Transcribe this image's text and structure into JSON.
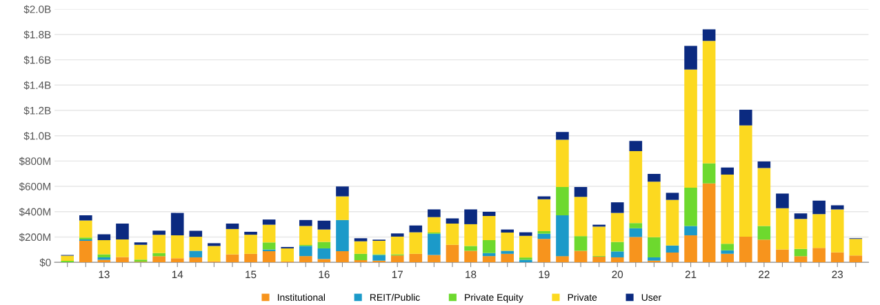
{
  "chart_data": {
    "type": "bar",
    "stacked": true,
    "categories": [
      null,
      null,
      "13",
      null,
      null,
      null,
      "14",
      null,
      null,
      null,
      "15",
      null,
      null,
      null,
      "16",
      null,
      null,
      null,
      "17",
      null,
      null,
      null,
      "18",
      null,
      null,
      null,
      "19",
      null,
      null,
      null,
      "20",
      null,
      null,
      null,
      "21",
      null,
      null,
      null,
      "22",
      null,
      null,
      null,
      "23",
      null
    ],
    "series": [
      {
        "name": "Institutional",
        "color": "#f7941d",
        "values": [
          0,
          170000000.0,
          20000000.0,
          41000000.0,
          5000000.0,
          49000000.0,
          32000000.0,
          39000000.0,
          8000000.0,
          63000000.0,
          67000000.0,
          88000000.0,
          7000000.0,
          49000000.0,
          26000000.0,
          88000000.0,
          17000000.0,
          13000000.0,
          54000000.0,
          67000000.0,
          58000000.0,
          138000000.0,
          91000000.0,
          49000000.0,
          67000000.0,
          0,
          185000000.0,
          49000000.0,
          91000000.0,
          45000000.0,
          39000000.0,
          200000000.0,
          13000000.0,
          77000000.0,
          213000000.0,
          623000000.0,
          67000000.0,
          203000000.0,
          179000000.0,
          101000000.0,
          49000000.0,
          114000000.0,
          78000000.0,
          54000000.0
        ]
      },
      {
        "name": "REIT/Public",
        "color": "#1b9ac9",
        "values": [
          0,
          10000000.0,
          19000000.0,
          0,
          0,
          0,
          0,
          52000000.0,
          0,
          0,
          0,
          13000000.0,
          0,
          80000000.0,
          84000000.0,
          246000000.0,
          0,
          45000000.0,
          0,
          0,
          168000000.0,
          0,
          0,
          24000000.0,
          24000000.0,
          20000000.0,
          41000000.0,
          322000000.0,
          0,
          0,
          47000000.0,
          69000000.0,
          26000000.0,
          56000000.0,
          74000000.0,
          0,
          28000000.0,
          0,
          0,
          0,
          0,
          0,
          0,
          0
        ]
      },
      {
        "name": "Private Equity",
        "color": "#6dd92e",
        "values": [
          12000000.0,
          15000000.0,
          24000000.0,
          0,
          16000000.0,
          24000000.0,
          0,
          null,
          0,
          0,
          0,
          56000000.0,
          0,
          8000000.0,
          51000000.0,
          0,
          50000000.0,
          6000000.0,
          9000000.0,
          0,
          9000000.0,
          0,
          38000000.0,
          102000000.0,
          0,
          18000000.0,
          20000000.0,
          224000000.0,
          116000000.0,
          5000000.0,
          75000000.0,
          41000000.0,
          159000000.0,
          0,
          303000000.0,
          159000000.0,
          52000000.0,
          0,
          108000000.0,
          0,
          56000000.0,
          0,
          0,
          0
        ]
      },
      {
        "name": "Private",
        "color": "#fcd920",
        "values": [
          40000000.0,
          135000000.0,
          112000000.0,
          140000000.0,
          117000000.0,
          144000000.0,
          181000000.0,
          111000000.0,
          121000000.0,
          200000000.0,
          151000000.0,
          140000000.0,
          103000000.0,
          150000000.0,
          98000000.0,
          187000000.0,
          99000000.0,
          106000000.0,
          140000000.0,
          170000000.0,
          122000000.0,
          168000000.0,
          172000000.0,
          191000000.0,
          144000000.0,
          171000000.0,
          252000000.0,
          374000000.0,
          310000000.0,
          232000000.0,
          229000000.0,
          569000000.0,
          439000000.0,
          360000000.0,
          933000000.0,
          967000000.0,
          546000000.0,
          878000000.0,
          458000000.0,
          326000000.0,
          238000000.0,
          267000000.0,
          340000000.0,
          131000000.0
        ]
      },
      {
        "name": "User",
        "color": "#0b2a80",
        "values": [
          6000000.0,
          41000000.0,
          47000000.0,
          125000000.0,
          19000000.0,
          33000000.0,
          177000000.0,
          47000000.0,
          22000000.0,
          43000000.0,
          23000000.0,
          41000000.0,
          11000000.0,
          47000000.0,
          70000000.0,
          78000000.0,
          24000000.0,
          9000000.0,
          25000000.0,
          54000000.0,
          61000000.0,
          41000000.0,
          117000000.0,
          33000000.0,
          24000000.0,
          28000000.0,
          23000000.0,
          60000000.0,
          78000000.0,
          15000000.0,
          84000000.0,
          80000000.0,
          61000000.0,
          56000000.0,
          187000000.0,
          91000000.0,
          56000000.0,
          125000000.0,
          52000000.0,
          116000000.0,
          43000000.0,
          106000000.0,
          32000000.0,
          5000000.0
        ]
      }
    ],
    "ylim": [
      0,
      2000000000.0
    ],
    "yticks": [
      {
        "value": 0,
        "label": "$0"
      },
      {
        "value": 200000000.0,
        "label": "$200M"
      },
      {
        "value": 400000000.0,
        "label": "$400M"
      },
      {
        "value": 600000000.0,
        "label": "$600M"
      },
      {
        "value": 800000000.0,
        "label": "$800M"
      },
      {
        "value": 1000000000.0,
        "label": "$1.0B"
      },
      {
        "value": 1200000000.0,
        "label": "$1.2B"
      },
      {
        "value": 1400000000.0,
        "label": "$1.4B"
      },
      {
        "value": 1600000000.0,
        "label": "$1.6B"
      },
      {
        "value": 1800000000.0,
        "label": "$1.8B"
      },
      {
        "value": 2000000000.0,
        "label": "$2.0B"
      }
    ],
    "grid": "y",
    "legend": "bottom"
  }
}
